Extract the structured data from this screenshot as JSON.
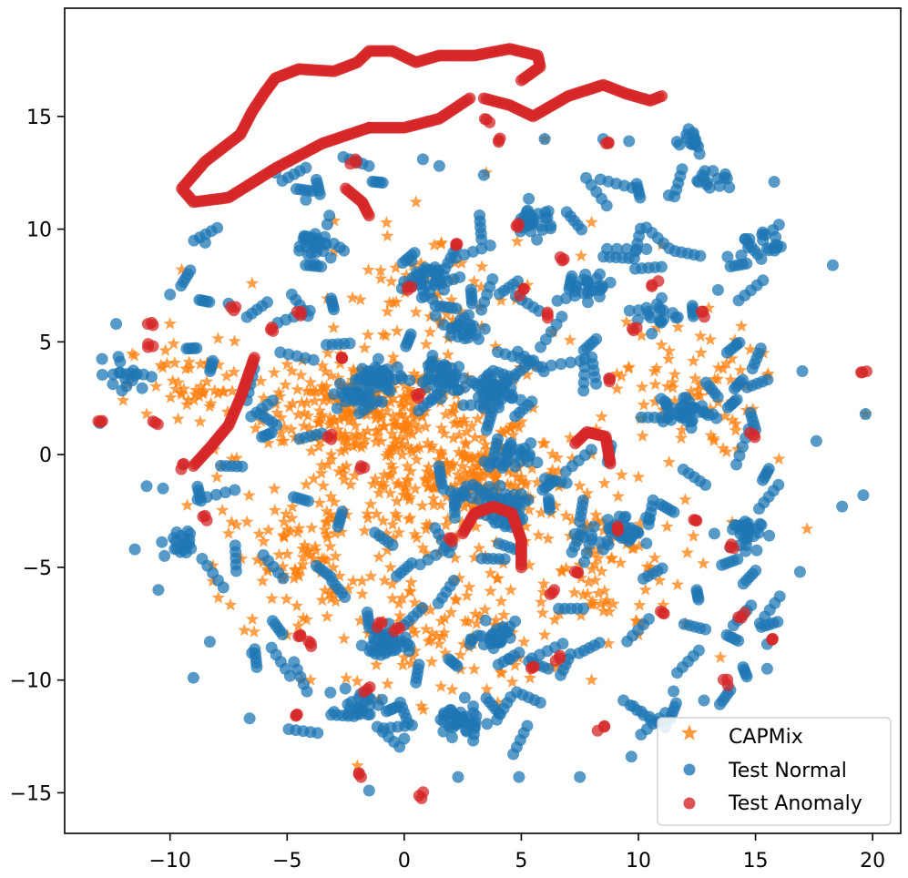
{
  "chart_data": {
    "type": "scatter",
    "title": "",
    "xlabel": "",
    "ylabel": "",
    "xlim": [
      -14.5,
      21.2
    ],
    "ylim": [
      -16.8,
      19.8
    ],
    "x_ticks": [
      -10,
      -5,
      0,
      5,
      10,
      15,
      20
    ],
    "y_ticks": [
      -15,
      -10,
      -5,
      0,
      5,
      10,
      15
    ],
    "x_tick_labels": [
      "−10",
      "−5",
      "0",
      "5",
      "10",
      "15",
      "20"
    ],
    "y_tick_labels": [
      "−15",
      "−10",
      "−5",
      "0",
      "5",
      "10",
      "15"
    ],
    "grid": false,
    "legend_position": "bottom-right",
    "series": [
      {
        "name": "CAPMix",
        "marker": "star",
        "color": "#ff7f0e",
        "alpha": 0.75,
        "clusters": [
          {
            "cx": -2,
            "cy": 2,
            "sx": 4,
            "sy": 2,
            "n": 160
          },
          {
            "cx": 3,
            "cy": -1,
            "sx": 4,
            "sy": 2,
            "n": 160
          },
          {
            "cx": 0,
            "cy": 0,
            "sx": 7,
            "sy": 5,
            "n": 260
          },
          {
            "cx": -4,
            "cy": -5,
            "sx": 4,
            "sy": 3.5,
            "n": 90
          },
          {
            "cx": 8,
            "cy": -5,
            "sx": 4,
            "sy": 3.5,
            "n": 90
          },
          {
            "cx": 12,
            "cy": 3,
            "sx": 3,
            "sy": 3,
            "n": 70
          },
          {
            "cx": -9,
            "cy": 3,
            "sx": 2.5,
            "sy": 2,
            "n": 50
          },
          {
            "cx": 2,
            "cy": -8,
            "sx": 4,
            "sy": 3,
            "n": 80
          },
          {
            "cx": 1,
            "cy": 7,
            "sx": 5,
            "sy": 3,
            "n": 60
          }
        ],
        "sample_points": [
          [
            -13,
            1.5
          ],
          [
            -12,
            2.4
          ],
          [
            -11,
            1.8
          ],
          [
            -10,
            5.8
          ],
          [
            -9.5,
            8.2
          ],
          [
            -8,
            -1
          ],
          [
            -7.5,
            -3.5
          ],
          [
            -6,
            2.5
          ],
          [
            -5,
            4
          ],
          [
            -4,
            3.2
          ],
          [
            -3,
            1.5
          ],
          [
            -2,
            2.8
          ],
          [
            -1,
            1.6
          ],
          [
            0,
            2.5
          ],
          [
            1,
            0.5
          ],
          [
            2,
            -0.5
          ],
          [
            3,
            -1.2
          ],
          [
            4,
            -2
          ],
          [
            5,
            -1
          ],
          [
            6,
            0.5
          ],
          [
            8,
            0
          ],
          [
            10,
            -1
          ],
          [
            12,
            -2
          ],
          [
            14,
            -3
          ],
          [
            15.5,
            -0.8
          ],
          [
            -5,
            -8
          ],
          [
            -4,
            -10
          ],
          [
            -2,
            -13.8
          ],
          [
            0,
            -9
          ],
          [
            2,
            -7
          ],
          [
            4,
            -11
          ],
          [
            6,
            -8
          ],
          [
            8,
            -10
          ],
          [
            10,
            -8
          ],
          [
            12,
            -7.5
          ],
          [
            13.5,
            -9
          ],
          [
            11,
            9.3
          ],
          [
            6,
            14
          ],
          [
            3.5,
            12.5
          ],
          [
            0.5,
            11.2
          ],
          [
            -3,
            9
          ],
          [
            -1,
            7.8
          ],
          [
            8,
            10.3
          ],
          [
            13,
            6.5
          ],
          [
            15.5,
            3.5
          ],
          [
            19.7,
            1.8
          ],
          [
            17.2,
            -3.3
          ],
          [
            16,
            -0.2
          ]
        ]
      },
      {
        "name": "Test Normal",
        "marker": "circle",
        "color": "#1f77b4",
        "alpha": 0.75,
        "blobs": [
          [
            1.8,
            3.4,
            9
          ],
          [
            3.8,
            2.8,
            11
          ],
          [
            -1.0,
            3.4,
            9
          ],
          [
            0.8,
            7.8,
            7
          ],
          [
            -3.8,
            9.3,
            6
          ],
          [
            5.5,
            10.4,
            6
          ],
          [
            4.0,
            -8.2,
            6
          ],
          [
            2.2,
            -11.8,
            8
          ],
          [
            -0.8,
            -8.4,
            8
          ],
          [
            4.3,
            -2.3,
            7
          ],
          [
            -1.8,
            -11.0,
            5
          ],
          [
            9.5,
            -3.3,
            5
          ],
          [
            12.2,
            2.0,
            5
          ],
          [
            14.3,
            -3.5,
            5
          ],
          [
            -2.2,
            2.7,
            6
          ],
          [
            4.5,
            -0.2,
            6
          ],
          [
            2.5,
            5.6,
            5
          ],
          [
            -9.5,
            -4.0,
            4
          ],
          [
            -11.8,
            3.6,
            4
          ],
          [
            15.3,
            9.3,
            4
          ],
          [
            8.0,
            7.6,
            4
          ],
          [
            10.8,
            6.2,
            4
          ],
          [
            13.3,
            12.2,
            3
          ],
          [
            12.1,
            14.0,
            3
          ]
        ],
        "sample_points": [
          [
            -12.3,
            5.8
          ],
          [
            -11.5,
            -4.2
          ],
          [
            -10.3,
            -1.5
          ],
          [
            -10.0,
            7.1
          ],
          [
            -9.0,
            -9.9
          ],
          [
            -8.5,
            9.4
          ],
          [
            -8.3,
            -8.3
          ],
          [
            -7.5,
            6.7
          ],
          [
            -6.6,
            -11.7
          ],
          [
            -6.5,
            -8.8
          ],
          [
            -5.5,
            12.5
          ],
          [
            -4.2,
            11.3
          ],
          [
            -3.2,
            10.6
          ],
          [
            -2.0,
            13.0
          ],
          [
            -1.5,
            -14.9
          ],
          [
            0.0,
            -12.6
          ],
          [
            0.8,
            13.1
          ],
          [
            1.5,
            12.8
          ],
          [
            2.3,
            -14.3
          ],
          [
            3.4,
            12.4
          ],
          [
            4.9,
            -14.3
          ],
          [
            6.0,
            14.0
          ],
          [
            7.5,
            -14.3
          ],
          [
            8.5,
            14.0
          ],
          [
            9.6,
            13.9
          ],
          [
            9.7,
            -13.4
          ],
          [
            11.3,
            11.5
          ],
          [
            11.5,
            -10.5
          ],
          [
            12.8,
            -10.9
          ],
          [
            13.4,
            7.3
          ],
          [
            14.2,
            4.9
          ],
          [
            15.5,
            -8.4
          ],
          [
            15.8,
            12.1
          ],
          [
            16.0,
            10.2
          ],
          [
            17.0,
            3.7
          ],
          [
            17.6,
            0.6
          ],
          [
            18.3,
            8.4
          ],
          [
            18.7,
            -2.3
          ],
          [
            19.6,
            -1.8
          ],
          [
            19.7,
            1.8
          ],
          [
            16.9,
            -5.2
          ],
          [
            15.5,
            -9.5
          ],
          [
            -13.0,
            1.4
          ],
          [
            -11.0,
            -1.4
          ],
          [
            -10.5,
            -6.0
          ]
        ]
      },
      {
        "name": "Test Anomaly",
        "marker": "circle",
        "color": "#d62728",
        "alpha": 0.75,
        "curves": [
          [
            [
              -1.5,
              14.5
            ],
            [
              -3.5,
              13.8
            ],
            [
              -5.5,
              12.7
            ],
            [
              -7.5,
              11.4
            ],
            [
              -9.0,
              11.2
            ],
            [
              -9.5,
              11.8
            ],
            [
              -8.5,
              13.0
            ],
            [
              -7.0,
              14.2
            ],
            [
              -6.5,
              15.2
            ],
            [
              -6.0,
              16.0
            ],
            [
              -5.5,
              16.7
            ],
            [
              -4.5,
              17.1
            ],
            [
              -3.0,
              17.0
            ],
            [
              -2.0,
              17.4
            ],
            [
              -1.5,
              17.9
            ],
            [
              -0.5,
              17.9
            ],
            [
              0.5,
              17.4
            ],
            [
              1.5,
              17.7
            ],
            [
              3.0,
              17.7
            ],
            [
              4.5,
              18.0
            ],
            [
              5.7,
              17.7
            ],
            [
              5.8,
              17.2
            ],
            [
              5.0,
              16.6
            ]
          ],
          [
            [
              -1.5,
              14.5
            ],
            [
              0.0,
              14.5
            ],
            [
              1.5,
              14.9
            ],
            [
              2.8,
              15.8
            ]
          ],
          [
            [
              3.4,
              15.8
            ],
            [
              4.5,
              15.5
            ],
            [
              5.5,
              15.0
            ],
            [
              7.0,
              15.9
            ],
            [
              8.5,
              16.4
            ],
            [
              9.5,
              16.0
            ],
            [
              10.5,
              15.7
            ],
            [
              11.0,
              15.9
            ]
          ],
          [
            [
              -9.0,
              -0.5
            ],
            [
              -8.3,
              0.3
            ],
            [
              -7.5,
              1.3
            ],
            [
              -7.0,
              2.5
            ],
            [
              -6.6,
              3.7
            ],
            [
              -6.4,
              4.3
            ]
          ],
          [
            [
              2.5,
              -3.5
            ],
            [
              3.0,
              -2.6
            ],
            [
              3.8,
              -2.3
            ],
            [
              4.6,
              -2.6
            ],
            [
              5.0,
              -3.8
            ],
            [
              5.0,
              -5.0
            ]
          ],
          [
            [
              -2.5,
              11.8
            ],
            [
              -1.8,
              11.2
            ],
            [
              -1.5,
              10.6
            ]
          ],
          [
            [
              7.3,
              0.5
            ],
            [
              7.8,
              1.0
            ],
            [
              8.6,
              0.8
            ],
            [
              8.8,
              -0.4
            ]
          ]
        ],
        "sample_points": [
          [
            -13.0,
            1.5
          ],
          [
            -10.8,
            5.7
          ],
          [
            -10.8,
            4.8
          ],
          [
            -10.6,
            1.4
          ],
          [
            -9.5,
            -0.5
          ],
          [
            -8.5,
            -2.8
          ],
          [
            -7.3,
            6.4
          ],
          [
            -5.6,
            5.5
          ],
          [
            -4.5,
            6.2
          ],
          [
            -4.5,
            -8.0
          ],
          [
            -4.0,
            -8.4
          ],
          [
            -3.2,
            0.8
          ],
          [
            -2.6,
            4.2
          ],
          [
            -2.2,
            13.0
          ],
          [
            -1.8,
            -0.5
          ],
          [
            -1.6,
            -10.4
          ],
          [
            -1.0,
            -7.6
          ],
          [
            -0.3,
            -7.8
          ],
          [
            0.2,
            7.3
          ],
          [
            0.6,
            2.6
          ],
          [
            0.7,
            -15.1
          ],
          [
            2.0,
            -3.8
          ],
          [
            2.3,
            9.4
          ],
          [
            3.5,
            14.8
          ],
          [
            4.0,
            14.0
          ],
          [
            4.8,
            10.2
          ],
          [
            5.0,
            7.2
          ],
          [
            5.5,
            -9.5
          ],
          [
            6.0,
            6.2
          ],
          [
            6.3,
            -6.1
          ],
          [
            6.5,
            -9.0
          ],
          [
            6.8,
            8.7
          ],
          [
            7.3,
            -5.3
          ],
          [
            8.6,
            13.9
          ],
          [
            8.7,
            3.3
          ],
          [
            9.2,
            -3.3
          ],
          [
            9.8,
            5.6
          ],
          [
            10.7,
            7.6
          ],
          [
            11.0,
            -7.0
          ],
          [
            12.5,
            -2.9
          ],
          [
            12.7,
            6.2
          ],
          [
            13.7,
            -10.1
          ],
          [
            14.0,
            -4.0
          ],
          [
            14.4,
            -7.1
          ],
          [
            14.9,
            0.9
          ],
          [
            15.8,
            -8.2
          ],
          [
            19.6,
            3.7
          ],
          [
            8.4,
            -12.1
          ],
          [
            -4.6,
            -11.5
          ],
          [
            -1.8,
            -14.2
          ]
        ]
      }
    ]
  },
  "legend": {
    "items": [
      {
        "label": "CAPMix",
        "marker": "star",
        "color": "#ff7f0e"
      },
      {
        "label": "Test Normal",
        "marker": "circle",
        "color": "#1f77b4"
      },
      {
        "label": "Test Anomaly",
        "marker": "circle",
        "color": "#d62728"
      }
    ]
  }
}
